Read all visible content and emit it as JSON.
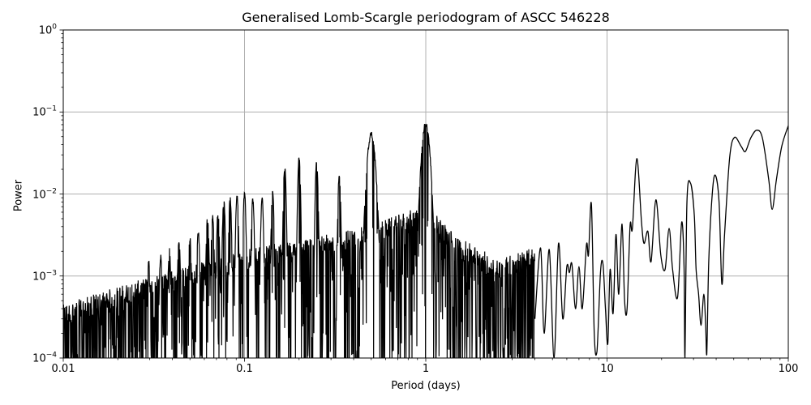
{
  "chart_data": {
    "type": "line",
    "title": "Generalised Lomb-Scargle periodogram of ASCC 546228",
    "xlabel": "Period (days)",
    "ylabel": "Power",
    "xscale": "log",
    "yscale": "log",
    "xlim": [
      0.01,
      100
    ],
    "ylim": [
      0.0001,
      1
    ],
    "grid": true,
    "legend": null,
    "line_color": "#000000",
    "grid_color": "#b0b0b0",
    "x_ticks": [
      {
        "value": 0.01,
        "label": "0.01"
      },
      {
        "value": 0.1,
        "label": "0.1"
      },
      {
        "value": 1,
        "label": "1"
      },
      {
        "value": 10,
        "label": "10"
      },
      {
        "value": 100,
        "label": "100"
      }
    ],
    "y_ticks": [
      {
        "value": 1,
        "base": "10",
        "exp": "0"
      },
      {
        "value": 0.1,
        "base": "10",
        "exp": "−1"
      },
      {
        "value": 0.01,
        "base": "10",
        "exp": "−2"
      },
      {
        "value": 0.001,
        "base": "10",
        "exp": "−3"
      },
      {
        "value": 0.0001,
        "base": "10",
        "exp": "−4"
      }
    ],
    "harmonic_peaks": [
      {
        "period": 0.0296,
        "power": 0.0016
      },
      {
        "period": 0.0345,
        "power": 0.0019
      },
      {
        "period": 0.0385,
        "power": 0.0022
      },
      {
        "period": 0.0435,
        "power": 0.0028
      },
      {
        "period": 0.05,
        "power": 0.0031
      },
      {
        "period": 0.0556,
        "power": 0.0037
      },
      {
        "period": 0.0625,
        "power": 0.0055
      },
      {
        "period": 0.0667,
        "power": 0.0058
      },
      {
        "period": 0.0714,
        "power": 0.0063
      },
      {
        "period": 0.0769,
        "power": 0.0091
      },
      {
        "period": 0.0833,
        "power": 0.0093
      },
      {
        "period": 0.0909,
        "power": 0.0103
      },
      {
        "period": 0.1,
        "power": 0.0112
      },
      {
        "period": 0.1111,
        "power": 0.0093
      },
      {
        "period": 0.125,
        "power": 0.0093
      },
      {
        "period": 0.1429,
        "power": 0.0117
      },
      {
        "period": 0.1667,
        "power": 0.023
      },
      {
        "period": 0.2,
        "power": 0.029
      },
      {
        "period": 0.25,
        "power": 0.028
      },
      {
        "period": 0.3333,
        "power": 0.018
      },
      {
        "period": 0.5,
        "power": 0.057
      },
      {
        "period": 1.0,
        "power": 0.077
      }
    ],
    "noise_envelope": [
      {
        "period": 0.01,
        "power": 0.0003
      },
      {
        "period": 0.02,
        "power": 0.0005
      },
      {
        "period": 0.05,
        "power": 0.0009
      },
      {
        "period": 0.1,
        "power": 0.0014
      },
      {
        "period": 0.2,
        "power": 0.0018
      },
      {
        "period": 0.5,
        "power": 0.0028
      },
      {
        "period": 1.0,
        "power": 0.005
      },
      {
        "period": 1.5,
        "power": 0.002
      },
      {
        "period": 2.5,
        "power": 0.0011
      },
      {
        "period": 4.0,
        "power": 0.0015
      }
    ],
    "smooth_curve": [
      [
        4.0,
        0.0003
      ],
      [
        4.3,
        0.0022
      ],
      [
        4.5,
        0.0002
      ],
      [
        4.8,
        0.0021
      ],
      [
        5.1,
        0.0001
      ],
      [
        5.4,
        0.0025
      ],
      [
        5.7,
        0.0003
      ],
      [
        6.0,
        0.0013
      ],
      [
        6.2,
        0.0011
      ],
      [
        6.4,
        0.0014
      ],
      [
        6.7,
        0.0004
      ],
      [
        7.0,
        0.0013
      ],
      [
        7.3,
        0.0004
      ],
      [
        7.7,
        0.0024
      ],
      [
        7.9,
        0.0018
      ],
      [
        8.2,
        0.0075
      ],
      [
        8.5,
        0.0002
      ],
      [
        8.8,
        0.00012
      ],
      [
        9.2,
        0.0011
      ],
      [
        9.5,
        0.0014
      ],
      [
        9.8,
        0.0004
      ],
      [
        10.1,
        0.00015
      ],
      [
        10.4,
        0.0012
      ],
      [
        10.8,
        0.00035
      ],
      [
        11.2,
        0.0032
      ],
      [
        11.6,
        0.0006
      ],
      [
        12.1,
        0.0043
      ],
      [
        12.5,
        0.0005
      ],
      [
        12.9,
        0.0004
      ],
      [
        13.4,
        0.0041
      ],
      [
        13.8,
        0.0038
      ],
      [
        14.6,
        0.027
      ],
      [
        15.5,
        0.0045
      ],
      [
        16.0,
        0.0025
      ],
      [
        16.8,
        0.0035
      ],
      [
        17.5,
        0.0015
      ],
      [
        18.6,
        0.0085
      ],
      [
        19.8,
        0.0018
      ],
      [
        20.9,
        0.0012
      ],
      [
        22.0,
        0.0038
      ],
      [
        23.0,
        0.0012
      ],
      [
        24.5,
        0.00055
      ],
      [
        25.8,
        0.0045
      ],
      [
        26.6,
        0.0013
      ],
      [
        26.9,
        0.0001
      ],
      [
        27.6,
        0.008
      ],
      [
        28.9,
        0.0135
      ],
      [
        30.3,
        0.0055
      ],
      [
        31.0,
        0.0012
      ],
      [
        32.0,
        0.0006
      ],
      [
        33.0,
        0.00025
      ],
      [
        34.2,
        0.0006
      ],
      [
        35.0,
        0.00025
      ],
      [
        35.5,
        0.00011
      ],
      [
        36.4,
        0.0015
      ],
      [
        38.0,
        0.0095
      ],
      [
        39.5,
        0.017
      ],
      [
        41.5,
        0.008
      ],
      [
        43.0,
        0.0008
      ],
      [
        44.5,
        0.0032
      ],
      [
        47.5,
        0.028
      ],
      [
        50.5,
        0.049
      ],
      [
        55.0,
        0.038
      ],
      [
        58.0,
        0.033
      ],
      [
        62.0,
        0.048
      ],
      [
        67.0,
        0.06
      ],
      [
        72.0,
        0.048
      ],
      [
        78.0,
        0.015
      ],
      [
        81.5,
        0.0065
      ],
      [
        86.0,
        0.015
      ],
      [
        92.0,
        0.038
      ],
      [
        100.0,
        0.068
      ]
    ]
  }
}
